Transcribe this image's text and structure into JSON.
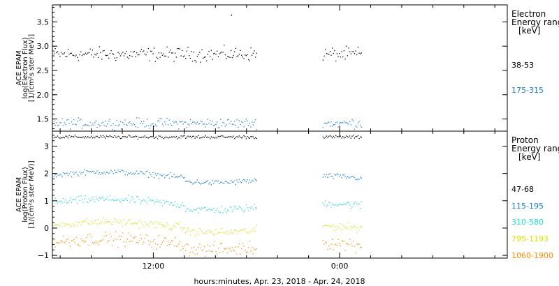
{
  "chart_data": [
    {
      "type": "scatter",
      "panel": "electron",
      "ylabel_lines": [
        "ACE EPAM",
        "log(Electron Flux)",
        "[1/(cm²s ster MeV)]"
      ],
      "legend_lines": [
        "Electron",
        "Energy ranges",
        "[keV]"
      ],
      "ylim": [
        1.25,
        3.85
      ],
      "yticks": [
        1.5,
        2.0,
        2.5,
        3.0,
        3.5
      ],
      "ytick_labels": [
        "1.5",
        "2.0",
        "2.5",
        "3.0",
        "3.5"
      ],
      "xlim_hours": [
        5.5,
        34.8
      ],
      "gap_hours": [
        18.7,
        22.85
      ],
      "data_end_hours": 25.4,
      "series": [
        {
          "name": "38-53",
          "color": "#000000",
          "baseline": 2.84,
          "noise": 0.07
        },
        {
          "name": "175-315",
          "color": "#1a7fd4",
          "baseline": 1.42,
          "noise": 0.05
        }
      ],
      "outliers": [
        {
          "x": 17.0,
          "y": 3.65
        }
      ]
    },
    {
      "type": "scatter",
      "panel": "proton",
      "ylabel_lines": [
        "ACE EPAM",
        "log(Proton Flux)",
        "[1/(cm²s ster MeV)]"
      ],
      "legend_lines": [
        "Proton",
        "Energy ranges",
        "[keV]"
      ],
      "ylim": [
        -1.1,
        3.55
      ],
      "yticks": [
        -1,
        0,
        1,
        2,
        3
      ],
      "ytick_labels": [
        "−1",
        "0",
        "1",
        "2",
        "3"
      ],
      "xlim_hours": [
        5.5,
        34.8
      ],
      "gap_hours": [
        18.7,
        22.85
      ],
      "data_end_hours": 25.4,
      "series": [
        {
          "name": "47-68",
          "color": "#000000",
          "baseline": 3.35,
          "noise": 0.03
        },
        {
          "name": "115-195",
          "color": "#1a7fd4",
          "baseline": 1.95,
          "noise": 0.05
        },
        {
          "name": "310-580",
          "color": "#22d8d8",
          "baseline": 0.95,
          "noise": 0.07
        },
        {
          "name": "795-1193",
          "color": "#d9e000",
          "baseline": 0.12,
          "noise": 0.07
        },
        {
          "name": "1060-1900",
          "color": "#ff8c00",
          "baseline": -0.5,
          "noise": 0.12
        }
      ]
    }
  ],
  "x_axis": {
    "tick_hours": [
      12,
      24
    ],
    "tick_labels": [
      "12:00",
      "0:00"
    ],
    "minor_step_hours": 2,
    "xlabel": "hours:minutes, Apr. 23, 2018 - Apr. 24, 2018"
  }
}
